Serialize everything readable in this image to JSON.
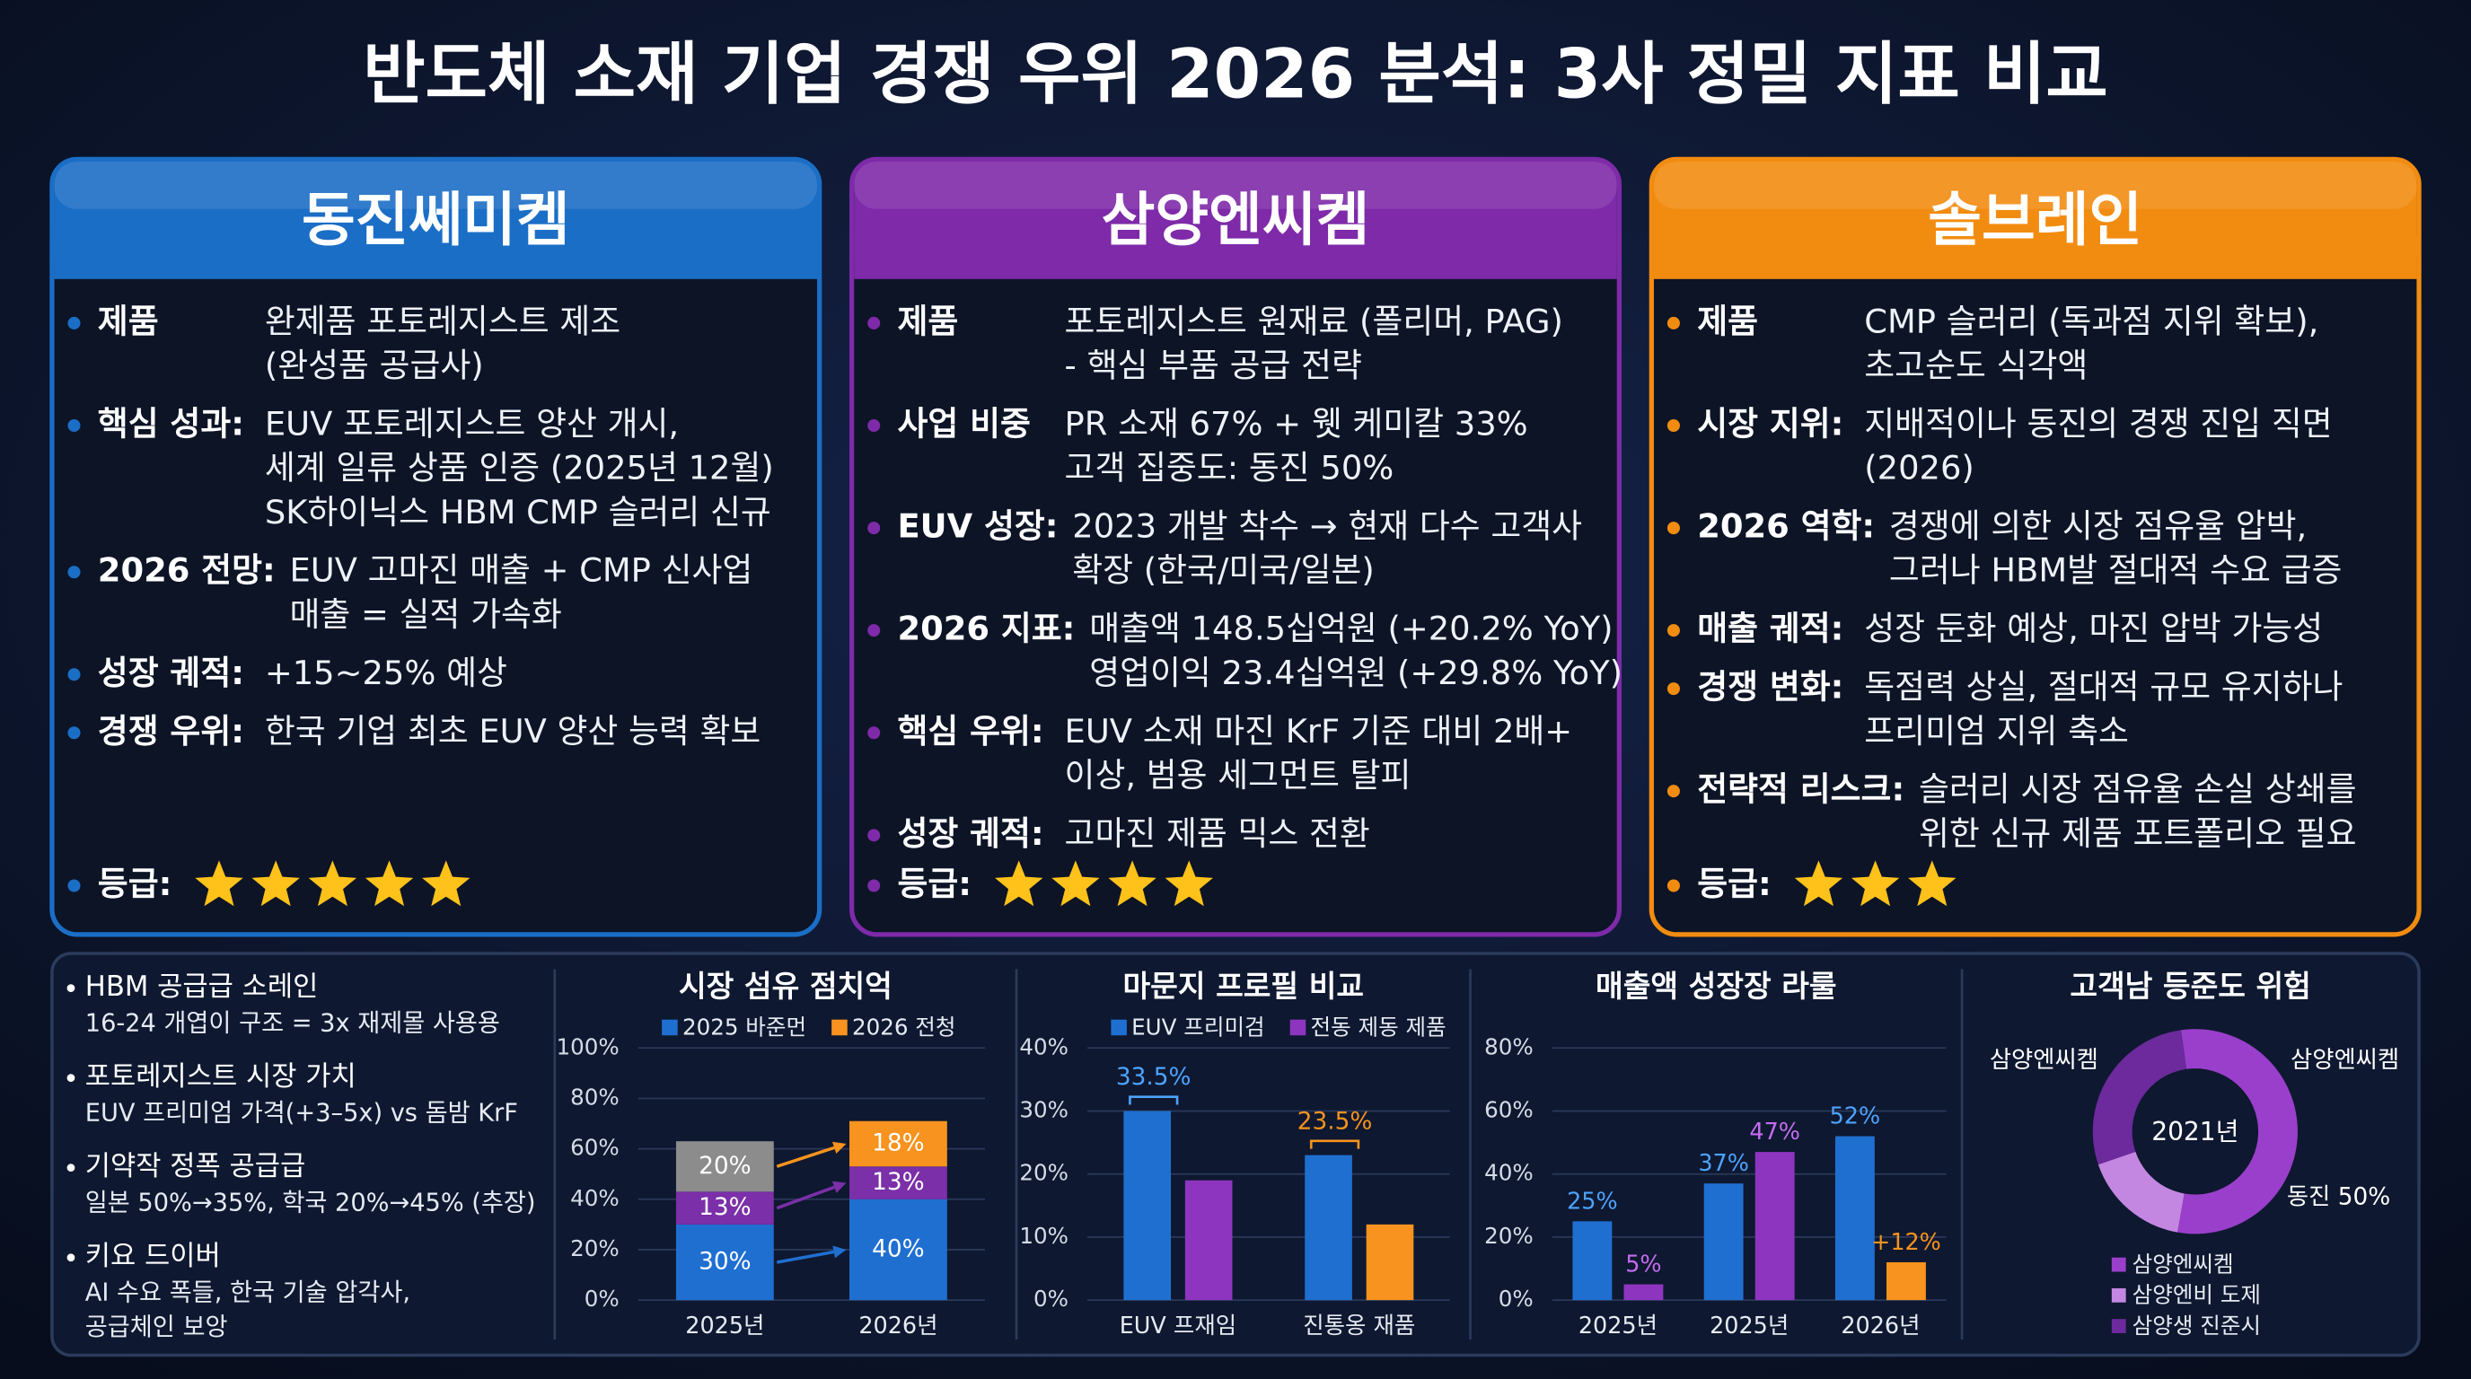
{
  "title": "반도체 소재 기업 경쟁 우위 2026 분석: 3사 정밀 지표 비교",
  "cards": [
    {
      "name": "동진쎄미켐",
      "color": "#1b6ec6",
      "items": [
        {
          "label": "제품",
          "lines": [
            "완제품 포토레지스트 제조",
            "(완성품 공급사)"
          ]
        },
        {
          "label": "핵심 성과:",
          "lines": [
            "EUV 포토레지스트 양산 개시,",
            "세계 일류 상품 인증 (2025년 12월)",
            "SK하이닉스 HBM CMP 슬러리 신규"
          ]
        },
        {
          "label": "2026 전망:",
          "lines": [
            "EUV 고마진 매출 + CMP 신사업",
            "매출 = 실적 가속화"
          ]
        },
        {
          "label": "성장 궤적:",
          "lines": [
            "+15~25% 예상"
          ]
        },
        {
          "label": "경쟁 우위:",
          "lines": [
            "한국 기업 최초 EUV 양산 능력 확보"
          ]
        }
      ],
      "rating_label": "등급:",
      "rating": 5
    },
    {
      "name": "삼양엔씨켐",
      "color": "#7e2aa9",
      "items": [
        {
          "label": "제품",
          "lines": [
            "포토레지스트 원재료 (폴리머, PAG)",
            "- 핵심 부품 공급 전략"
          ]
        },
        {
          "label": "사업 비중",
          "lines": [
            "PR 소재 67% + 웻 케미칼 33%",
            "고객 집중도: 동진 50%"
          ]
        },
        {
          "label": "EUV 성장:",
          "lines": [
            "2023 개발 착수 → 현재 다수 고객사",
            "확장 (한국/미국/일본)"
          ]
        },
        {
          "label": "2026 지표:",
          "lines": [
            "매출액 148.5십억원 (+20.2% YoY)",
            "영업이익 23.4십억원 (+29.8% YoY)"
          ]
        },
        {
          "label": "핵심 우위:",
          "lines": [
            "EUV 소재 마진 KrF 기준 대비 2배+",
            "이상, 범용 세그먼트 탈피"
          ]
        },
        {
          "label": "성장 궤적:",
          "lines": [
            "고마진 제품 믹스 전환"
          ]
        }
      ],
      "rating_label": "등급:",
      "rating": 4
    },
    {
      "name": "솔브레인",
      "color": "#f28c10",
      "items": [
        {
          "label": "제품",
          "lines": [
            "CMP 슬러리 (독과점 지위 확보),",
            "초고순도 식각액"
          ]
        },
        {
          "label": "시장 지위:",
          "lines": [
            "지배적이나 동진의 경쟁 진입 직면",
            "(2026)"
          ]
        },
        {
          "label": "2026 역학:",
          "lines": [
            "경쟁에 의한 시장 점유율 압박,",
            "그러나 HBM발 절대적 수요 급증"
          ]
        },
        {
          "label": "매출 궤적:",
          "lines": [
            "성장 둔화 예상, 마진 압박 가능성"
          ]
        },
        {
          "label": "경쟁 변화:",
          "lines": [
            "독점력 상실, 절대적 규모 유지하나",
            "프리미엄 지위 축소"
          ]
        },
        {
          "label": "전략적 리스크:",
          "lines": [
            "슬러리 시장 점유율 손실 상쇄를",
            "위한 신규 제품 포트폴리오 필요"
          ]
        }
      ],
      "rating_label": "등급:",
      "rating": 3
    }
  ],
  "notes": [
    {
      "heading": "HBM 공급급 소레인",
      "lines": [
        "16-24 개엽이 구조 = 3x 재제몰 사용용"
      ]
    },
    {
      "heading": "포토레지스트 시장 가치",
      "lines": [
        "EUV 프리미엄 가격(+3–5x) vs 돔밤 KrF"
      ]
    },
    {
      "heading": "기약작 정폭 공급급",
      "lines": [
        "일본 50%→35%, 학국 20%→45% (추장)"
      ]
    },
    {
      "heading": "키요 드이버",
      "lines": [
        "AI 수요 폭들, 한국 기술 압각사,",
        "공급체인 보앙"
      ]
    }
  ],
  "chart_data": [
    {
      "type": "stacked_bar",
      "title": "시장 섬유 점치억",
      "legend": [
        {
          "name": "2025 바준먼",
          "color": "#1f6fd1"
        },
        {
          "name": "2026 전청",
          "color": "#f7931e"
        }
      ],
      "categories": [
        "2025년",
        "2026년"
      ],
      "series": [
        {
          "color": "#1f6fd1",
          "values": [
            30,
            40
          ],
          "value_labels": [
            "30%",
            "40%"
          ]
        },
        {
          "color": "#7b2fa8",
          "values": [
            13,
            13
          ],
          "value_labels": [
            "13%",
            "13%"
          ]
        },
        {
          "colors": [
            "#8c8c8c",
            "#f7931e"
          ],
          "values": [
            20,
            18
          ],
          "value_labels": [
            "20%",
            "18%"
          ]
        }
      ],
      "ylim": [
        0,
        100
      ],
      "yticks": [
        {
          "value": 0,
          "label": "0%"
        },
        {
          "value": 20,
          "label": "20%"
        },
        {
          "value": 40,
          "label": "40%"
        },
        {
          "value": 60,
          "label": "60%"
        },
        {
          "value": 80,
          "label": "80%"
        },
        {
          "value": 100,
          "label": "100%"
        }
      ],
      "grid": true
    },
    {
      "type": "grouped_bar",
      "title": "마문지 프로필 비교",
      "categories": [
        "EUV 프재임",
        "진통옹 재품"
      ],
      "series": [
        {
          "name": "EUV 프리미검",
          "color": "#1f6fd1",
          "values": [
            30,
            23
          ]
        },
        {
          "name": "전동 제동 제품",
          "color": "#8e35c0",
          "colors": [
            "#8e35c0",
            "#f7931e"
          ],
          "values": [
            19,
            12
          ]
        }
      ],
      "annotations": [
        {
          "text": "33.5%",
          "color": "#4da3ff"
        },
        {
          "text": "23.5%",
          "color": "#f7931e"
        }
      ],
      "ylim": [
        0,
        40
      ],
      "yticks": [
        {
          "value": 0,
          "label": "0%"
        },
        {
          "value": 10,
          "label": "10%"
        },
        {
          "value": 20,
          "label": "20%"
        },
        {
          "value": 30,
          "label": "30%"
        },
        {
          "value": 40,
          "label": "40%"
        }
      ],
      "grid": true
    },
    {
      "type": "grouped_bar",
      "title": "매출액 성장장 라룰",
      "categories": [
        "2025년",
        "2025년",
        "2026년"
      ],
      "series": [
        {
          "color": "#1f6fd1",
          "values": [
            25,
            37,
            52
          ],
          "value_labels": [
            "25%",
            "37%",
            "52%"
          ]
        },
        {
          "colors": [
            "#8e35c0",
            "#8e35c0",
            "#f7931e"
          ],
          "values": [
            5,
            47,
            12
          ],
          "value_labels": [
            "5%",
            "47%",
            "+12%"
          ]
        }
      ],
      "ylim": [
        0,
        80
      ],
      "yticks": [
        {
          "value": 0,
          "label": "0%"
        },
        {
          "value": 20,
          "label": "20%"
        },
        {
          "value": 40,
          "label": "40%"
        },
        {
          "value": 60,
          "label": "60%"
        },
        {
          "value": 80,
          "label": "80%"
        }
      ],
      "grid": true
    },
    {
      "type": "donut",
      "title": "고객남 등준도 위험",
      "center_label": "2021년",
      "categories": [
        "삼양엔씨켐",
        "삼양엔비 도제",
        "삼양생 진준시"
      ],
      "values": [
        55,
        17,
        28
      ],
      "colors": [
        "#9a3fcb",
        "#c387e2",
        "#6c2a9c"
      ],
      "annotations": [
        "삼양엔씨켐",
        "삼양엔씨켐",
        "동진 50%"
      ]
    }
  ]
}
